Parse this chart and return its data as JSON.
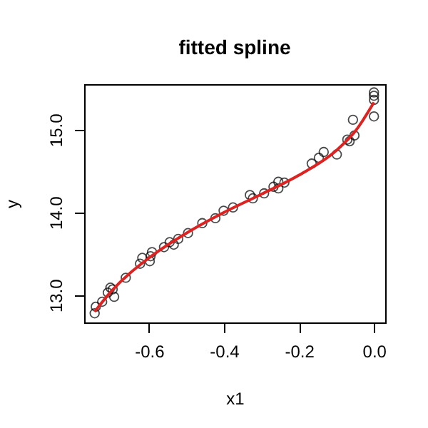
{
  "chart_data": {
    "type": "scatter",
    "title": "fitted spline",
    "xlabel": "x1",
    "ylabel": "y",
    "xlim": [
      -0.773,
      0.03
    ],
    "ylim": [
      12.67,
      15.55
    ],
    "xticks": [
      -0.6,
      -0.4,
      -0.2,
      {
        "value": 0,
        "label": "0.0"
      }
    ],
    "yticks": [
      {
        "value": 13,
        "label": "13.0"
      },
      {
        "value": 14,
        "label": "14.0"
      },
      {
        "value": 15,
        "label": "15.0"
      }
    ],
    "grid": false,
    "series": [
      {
        "type": "scatter",
        "marker": "circle",
        "color": "#000000",
        "x": [
          -0.745,
          -0.742,
          -0.725,
          -0.71,
          -0.703,
          -0.697,
          -0.693,
          -0.662,
          -0.624,
          -0.618,
          -0.598,
          -0.596,
          -0.592,
          -0.56,
          -0.545,
          -0.534,
          -0.522,
          -0.496,
          -0.458,
          -0.423,
          -0.401,
          -0.376,
          -0.331,
          -0.323,
          -0.293,
          -0.268,
          -0.255,
          -0.255,
          -0.239,
          -0.166,
          -0.147,
          -0.134,
          -0.099,
          -0.071,
          -0.065,
          -0.056,
          -0.052,
          0,
          0,
          0,
          0
        ],
        "values": [
          12.78,
          12.86,
          12.92,
          13.03,
          13.09,
          13.07,
          12.98,
          13.21,
          13.38,
          13.45,
          13.41,
          13.47,
          13.52,
          13.58,
          13.64,
          13.61,
          13.68,
          13.75,
          13.87,
          13.93,
          14.02,
          14.06,
          14.21,
          14.17,
          14.23,
          14.31,
          14.37,
          14.29,
          14.36,
          14.59,
          14.66,
          14.73,
          14.7,
          14.88,
          14.86,
          15.12,
          14.93,
          15.45,
          15.41,
          15.36,
          15.16
        ]
      },
      {
        "type": "line",
        "color": "#dd2222",
        "marker": "none",
        "x": [
          -0.745,
          -0.7,
          -0.6,
          -0.5,
          -0.4,
          -0.3,
          -0.2,
          -0.1,
          -0.05,
          0
        ],
        "values": [
          12.8,
          13.05,
          13.45,
          13.75,
          14.0,
          14.22,
          14.45,
          14.75,
          14.98,
          15.33
        ]
      }
    ]
  }
}
